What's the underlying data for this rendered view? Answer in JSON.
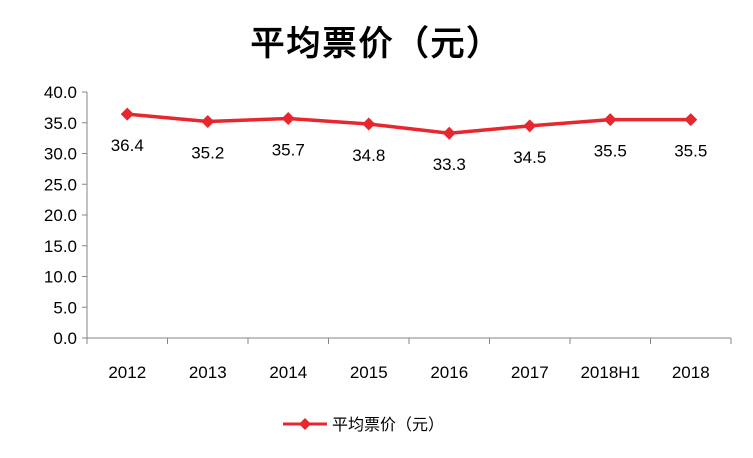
{
  "chart_data": {
    "type": "line",
    "title": "平均票价（元）",
    "categories": [
      "2012",
      "2013",
      "2014",
      "2015",
      "2016",
      "2017",
      "2018H1",
      "2018"
    ],
    "series": [
      {
        "name": "平均票价（元）",
        "values": [
          36.4,
          35.2,
          35.7,
          34.8,
          33.3,
          34.5,
          35.5,
          35.5
        ],
        "data_labels": [
          "36.4",
          "35.2",
          "35.7",
          "34.8",
          "33.3",
          "34.5",
          "35.5",
          "35.5"
        ],
        "color": "#e8262d",
        "marker": "diamond"
      }
    ],
    "ylim": [
      0,
      40
    ],
    "yticks": [
      "0.0",
      "5.0",
      "10.0",
      "15.0",
      "20.0",
      "25.0",
      "30.0",
      "35.0",
      "40.0"
    ],
    "grid": false,
    "legend": "bottom-center",
    "xlabel": "",
    "ylabel": ""
  }
}
